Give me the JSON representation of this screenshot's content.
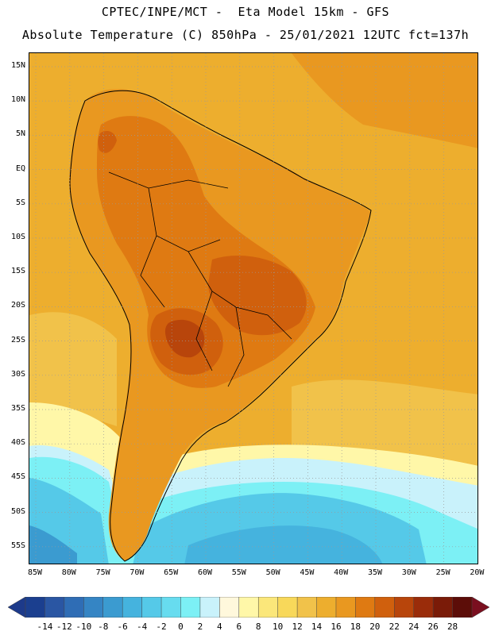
{
  "title_line1": "CPTEC/INPE/MCT -  Eta Model 15km - GFS",
  "title_line2": "Absolute Temperature (C) 850hPa - 25/01/2021 12UTC fct=137h",
  "lat_labels": [
    "15N",
    "10N",
    "5N",
    "EQ",
    "5S",
    "10S",
    "15S",
    "20S",
    "25S",
    "30S",
    "35S",
    "40S",
    "45S",
    "50S",
    "55S"
  ],
  "lon_labels": [
    "85W",
    "80W",
    "75W",
    "70W",
    "65W",
    "60W",
    "55W",
    "50W",
    "45W",
    "40W",
    "35W",
    "30W",
    "25W",
    "20W"
  ],
  "colorbar": {
    "labels": [
      "-14",
      "-12",
      "-10",
      "-8",
      "-6",
      "-4",
      "-2",
      "0",
      "2",
      "4",
      "6",
      "8",
      "10",
      "12",
      "14",
      "16",
      "18",
      "20",
      "22",
      "24",
      "26",
      "28"
    ],
    "colors": [
      "#1b3f8f",
      "#2a56a3",
      "#2f6db5",
      "#3585c4",
      "#3b9bd0",
      "#45b3de",
      "#55c9e8",
      "#67dcef",
      "#7cf0f5",
      "#c9f2fb",
      "#fff8dc",
      "#fff7a8",
      "#fbe77a",
      "#f8d85a",
      "#f1c24a",
      "#edae2e",
      "#e99820",
      "#df7a12",
      "#d0600d",
      "#b8450b",
      "#9a2c0a",
      "#7a1b08",
      "#5c0d08"
    ],
    "under_color": "#1d3a8a",
    "over_color": "#7a0f1f"
  },
  "field_colors": {
    "ocean_warm": "#edae2e",
    "ocean_mid": "#f1c24a",
    "land_hot": "#df7a12",
    "land_very_hot": "#d0600d",
    "land_max": "#b8450b",
    "cool": "#fff7a8",
    "cold": "#7cf0f5",
    "colder": "#55c9e8",
    "coldest": "#3585c4"
  }
}
